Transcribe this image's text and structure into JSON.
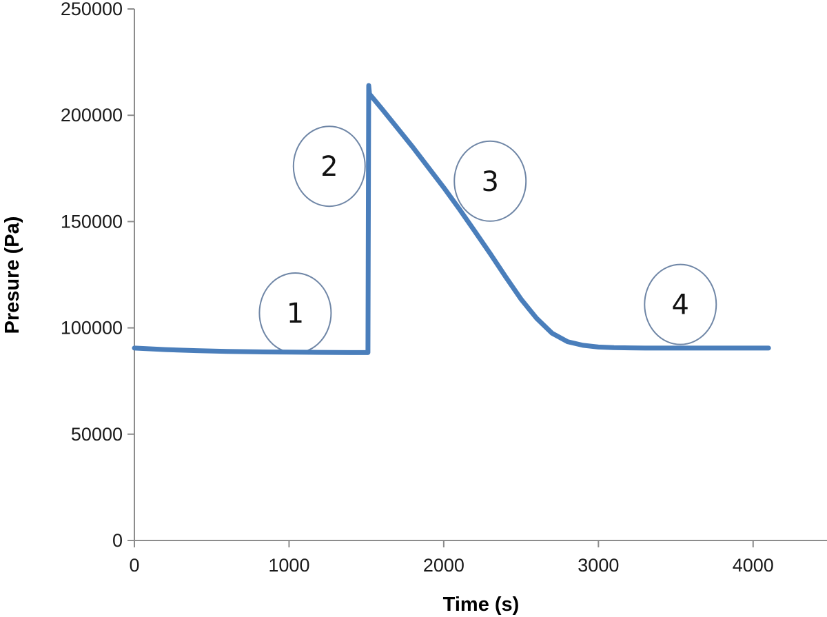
{
  "chart_data": {
    "type": "line",
    "title": "",
    "xlabel": "Time (s)",
    "ylabel": "Presure (Pa)",
    "xlim": [
      0,
      4500
    ],
    "ylim": [
      0,
      250000
    ],
    "x_ticks": [
      0,
      1000,
      2000,
      3000,
      4000
    ],
    "y_ticks": [
      0,
      50000,
      100000,
      150000,
      200000,
      250000
    ],
    "x_tick_labels": [
      "0",
      "1000",
      "2000",
      "3000",
      "4000"
    ],
    "y_tick_labels": [
      "0",
      "50000",
      "100000",
      "150000",
      "200000",
      "250000"
    ],
    "grid": false,
    "legend": "none",
    "series": [
      {
        "color": "#4a7ebb",
        "x": [
          0,
          200,
          400,
          600,
          800,
          1000,
          1200,
          1400,
          1510,
          1515,
          1520,
          1600,
          1700,
          1800,
          1900,
          2000,
          2100,
          2200,
          2300,
          2400,
          2500,
          2600,
          2700,
          2800,
          2900,
          3000,
          3100,
          3200,
          3300,
          3400,
          3500,
          3600,
          3700,
          3800,
          3900,
          4000,
          4100
        ],
        "y": [
          90500,
          89800,
          89300,
          88900,
          88700,
          88600,
          88500,
          88400,
          88400,
          214000,
          210000,
          203000,
          194000,
          185000,
          175500,
          166000,
          156000,
          145500,
          135000,
          124000,
          113500,
          104500,
          97500,
          93500,
          91800,
          91000,
          90700,
          90600,
          90500,
          90500,
          90500,
          90500,
          90500,
          90500,
          90500,
          90500,
          90500
        ]
      }
    ],
    "annotations": [
      {
        "label": "1",
        "x": 1040,
        "y": 107000
      },
      {
        "label": "2",
        "x": 1260,
        "y": 176000
      },
      {
        "label": "3",
        "x": 2300,
        "y": 169000
      },
      {
        "label": "4",
        "x": 3530,
        "y": 111000
      }
    ]
  }
}
